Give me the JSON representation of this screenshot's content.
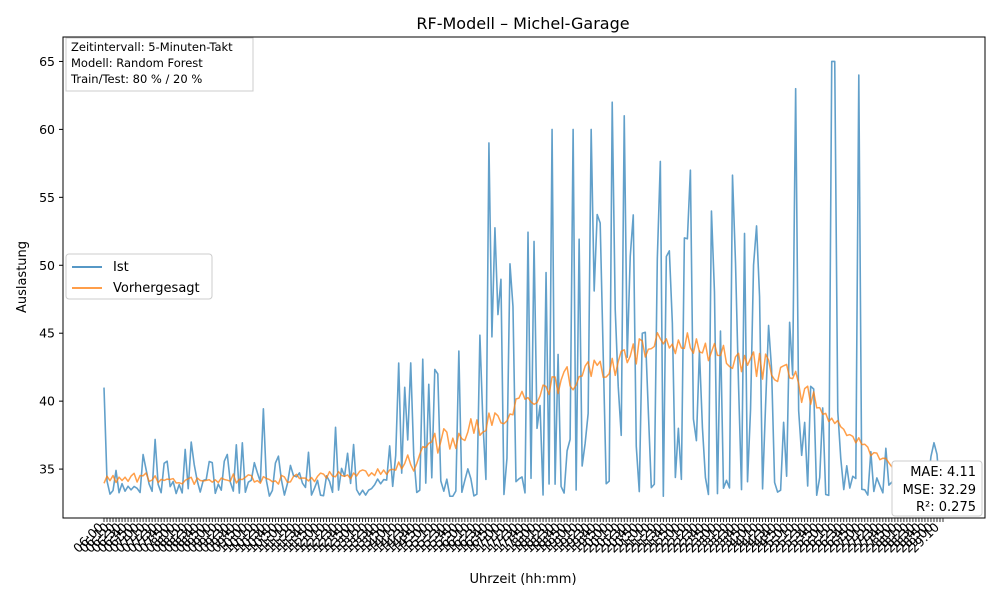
{
  "chart_data": {
    "type": "line",
    "title": "RF-Modell – Michel-Garage",
    "xlabel": "Uhrzeit (hh:mm)",
    "ylabel": "Auslastung",
    "ylim": [
      31.4,
      66.8
    ],
    "yticks": [
      35,
      40,
      45,
      50,
      55,
      60,
      65
    ],
    "x_tick_note": "Dense rotated hh:mm tick labels at 5-minute intervals (illegible in source)",
    "n_points": 280,
    "grid": false,
    "legend_position": "center-left",
    "series": [
      {
        "name": "Ist",
        "color": "#1f77b4",
        "description": "Actual occupancy, highly volatile, values 33–65"
      },
      {
        "name": "Vorhergesagt",
        "color": "#ff7f0e",
        "description": "Random Forest prediction, smooth trend 34–47"
      }
    ],
    "info_box": [
      "Zeitintervall: 5-Minuten-Takt",
      "Modell: Random Forest",
      "Train/Test: 80 % / 20 %"
    ],
    "metrics": [
      "MAE: 4.11",
      "MSE: 32.29",
      "R²: 0.275"
    ],
    "trend_knots": {
      "fractions": [
        0.0,
        0.05,
        0.1,
        0.15,
        0.2,
        0.25,
        0.3,
        0.35,
        0.38,
        0.4,
        0.45,
        0.5,
        0.55,
        0.6,
        0.62,
        0.65,
        0.7,
        0.75,
        0.8,
        0.83,
        0.86,
        0.88,
        0.9,
        0.93,
        0.96,
        1.0
      ],
      "values": [
        34.3,
        34.4,
        34.2,
        34.3,
        34.2,
        34.4,
        34.6,
        35.0,
        36.3,
        37.0,
        38.2,
        40.0,
        41.6,
        42.3,
        43.0,
        44.2,
        44.3,
        43.0,
        42.3,
        41.0,
        39.0,
        38.0,
        37.0,
        35.5,
        34.6,
        34.2
      ]
    }
  }
}
